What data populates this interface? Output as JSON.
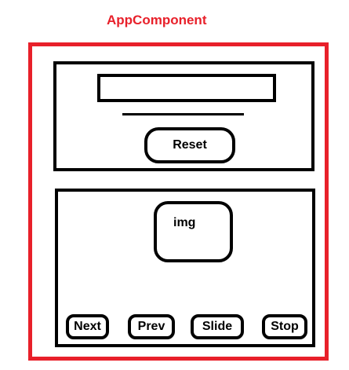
{
  "diagram": {
    "title": "AppComponent",
    "top_panel": {
      "reset_label": "Reset"
    },
    "bottom_panel": {
      "image_label": "img",
      "buttons": [
        "Next",
        "Prev",
        "Slide",
        "Stop"
      ]
    }
  },
  "colors": {
    "title": "#e8202a",
    "frame": "#e8202a",
    "stroke": "#000000",
    "background": "#ffffff"
  }
}
